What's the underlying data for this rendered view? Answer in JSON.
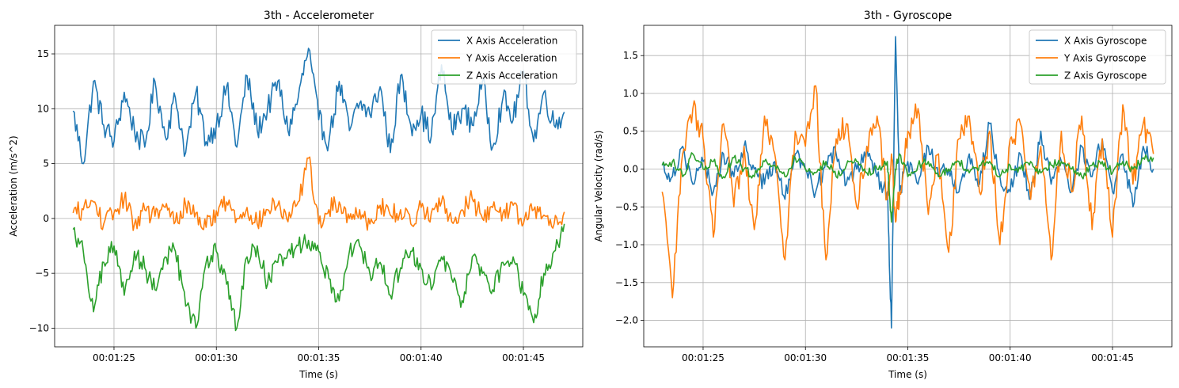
{
  "chart_data": [
    {
      "type": "line",
      "title": "3th - Accelerometer",
      "xlabel": "Time (s)",
      "ylabel": "Acceleration (m/s^2)",
      "x_tick_labels": [
        "00:01:25",
        "00:01:30",
        "00:01:35",
        "00:01:40",
        "00:01:45"
      ],
      "y_ticks": [
        -10,
        -5,
        0,
        5,
        10,
        15
      ],
      "xlim": [
        "00:01:22.1",
        "00:01:47.9"
      ],
      "ylim": [
        -11.7,
        17.6
      ],
      "grid": true,
      "legend_position": "top-right",
      "series": [
        {
          "name": "X Axis Acceleration",
          "color": "#1f77b4"
        },
        {
          "name": "Y Axis Acceleration",
          "color": "#ff7f0e"
        },
        {
          "name": "Z Axis Acceleration",
          "color": "#2ca02c"
        }
      ],
      "x": [
        "00:01:23.0",
        "00:01:23.5",
        "00:01:24.0",
        "00:01:24.5",
        "00:01:25.0",
        "00:01:25.5",
        "00:01:26.0",
        "00:01:26.5",
        "00:01:27.0",
        "00:01:27.5",
        "00:01:28.0",
        "00:01:28.5",
        "00:01:29.0",
        "00:01:29.5",
        "00:01:30.0",
        "00:01:30.5",
        "00:01:31.0",
        "00:01:31.5",
        "00:01:32.0",
        "00:01:32.5",
        "00:01:33.0",
        "00:01:33.5",
        "00:01:34.0",
        "00:01:34.5",
        "00:01:35.0",
        "00:01:35.5",
        "00:01:36.0",
        "00:01:36.5",
        "00:01:37.0",
        "00:01:37.5",
        "00:01:38.0",
        "00:01:38.5",
        "00:01:39.0",
        "00:01:39.5",
        "00:01:40.0",
        "00:01:40.5",
        "00:01:41.0",
        "00:01:41.5",
        "00:01:42.0",
        "00:01:42.5",
        "00:01:43.0",
        "00:01:43.5",
        "00:01:44.0",
        "00:01:44.5",
        "00:01:45.0",
        "00:01:45.5",
        "00:01:46.0",
        "00:01:46.5",
        "00:01:47.0"
      ],
      "values": [
        [
          9.8,
          5.0,
          12.5,
          8.5,
          7.0,
          11.5,
          8.0,
          6.5,
          12.5,
          7.5,
          11.0,
          6.0,
          11.5,
          7.0,
          8.5,
          12.0,
          6.5,
          13.0,
          8.0,
          10.0,
          12.5,
          8.0,
          11.0,
          15.5,
          9.0,
          7.0,
          12.5,
          8.0,
          10.5,
          9.5,
          12.0,
          6.0,
          13.0,
          8.5,
          9.5,
          7.5,
          14.0,
          8.0,
          10.0,
          8.5,
          12.5,
          6.5,
          11.0,
          9.0,
          13.5,
          7.0,
          11.5,
          8.5,
          9.7
        ],
        [
          0.5,
          0.8,
          1.5,
          -0.5,
          0.5,
          1.8,
          -0.5,
          0.8,
          0.2,
          1.0,
          -0.3,
          1.2,
          0.5,
          -0.8,
          0.7,
          1.5,
          0.0,
          1.0,
          -0.5,
          0.8,
          1.2,
          -0.3,
          1.5,
          5.5,
          -0.5,
          0.8,
          1.5,
          0.0,
          0.8,
          -0.5,
          1.2,
          0.3,
          0.8,
          -0.5,
          1.0,
          0.5,
          1.5,
          -0.3,
          0.8,
          1.8,
          0.0,
          1.0,
          0.5,
          1.2,
          -0.5,
          0.8,
          0.3,
          -0.5,
          0.6
        ],
        [
          -1.0,
          -3.0,
          -8.5,
          -4.0,
          -2.5,
          -7.0,
          -3.0,
          -4.5,
          -6.5,
          -3.5,
          -3.0,
          -8.0,
          -10.0,
          -4.0,
          -3.0,
          -6.0,
          -10.0,
          -3.5,
          -2.5,
          -6.0,
          -4.0,
          -3.0,
          -2.5,
          -2.0,
          -3.0,
          -5.5,
          -7.5,
          -3.0,
          -2.5,
          -5.0,
          -4.0,
          -7.0,
          -4.5,
          -3.0,
          -4.5,
          -6.5,
          -3.5,
          -5.5,
          -7.5,
          -3.5,
          -5.0,
          -6.5,
          -4.0,
          -3.5,
          -7.0,
          -9.5,
          -5.0,
          -3.0,
          -0.5
        ]
      ]
    },
    {
      "type": "line",
      "title": "3th - Gyroscope",
      "xlabel": "Time (s)",
      "ylabel": "Angular Velocity (rad/s)",
      "x_tick_labels": [
        "00:01:25",
        "00:01:30",
        "00:01:35",
        "00:01:40",
        "00:01:45"
      ],
      "y_ticks": [
        -2.0,
        -1.5,
        -1.0,
        -0.5,
        0.0,
        0.5,
        1.0,
        1.5
      ],
      "xlim": [
        "00:01:22.1",
        "00:01:47.9"
      ],
      "ylim": [
        -2.35,
        1.9
      ],
      "grid": true,
      "legend_position": "top-right",
      "series": [
        {
          "name": "X Axis Gyroscope",
          "color": "#1f77b4"
        },
        {
          "name": "Y Axis Gyroscope",
          "color": "#ff7f0e"
        },
        {
          "name": "Z Axis Gyroscope",
          "color": "#2ca02c"
        }
      ],
      "x": [
        "00:01:23.0",
        "00:01:23.5",
        "00:01:24.0",
        "00:01:24.5",
        "00:01:25.0",
        "00:01:25.5",
        "00:01:26.0",
        "00:01:26.5",
        "00:01:27.0",
        "00:01:27.5",
        "00:01:28.0",
        "00:01:28.5",
        "00:01:29.0",
        "00:01:29.5",
        "00:01:30.0",
        "00:01:30.5",
        "00:01:31.0",
        "00:01:31.5",
        "00:01:32.0",
        "00:01:32.5",
        "00:01:33.0",
        "00:01:33.5",
        "00:01:34.0",
        "00:01:34.2",
        "00:01:34.4",
        "00:01:34.6",
        "00:01:35.0",
        "00:01:35.5",
        "00:01:36.0",
        "00:01:36.5",
        "00:01:37.0",
        "00:01:37.5",
        "00:01:38.0",
        "00:01:38.5",
        "00:01:39.0",
        "00:01:39.5",
        "00:01:40.0",
        "00:01:40.5",
        "00:01:41.0",
        "00:01:41.5",
        "00:01:42.0",
        "00:01:42.5",
        "00:01:43.0",
        "00:01:43.5",
        "00:01:44.0",
        "00:01:44.5",
        "00:01:45.0",
        "00:01:45.5",
        "00:01:46.0",
        "00:01:46.5",
        "00:01:47.0"
      ],
      "values": [
        [
          0.05,
          -0.1,
          0.3,
          -0.2,
          0.1,
          -0.3,
          0.2,
          -0.1,
          0.3,
          0.0,
          -0.2,
          0.1,
          -0.4,
          0.2,
          0.0,
          -0.3,
          0.1,
          0.2,
          -0.2,
          0.0,
          0.3,
          -0.1,
          -0.3,
          -2.1,
          1.75,
          -0.3,
          0.1,
          -0.2,
          0.3,
          -0.1,
          0.0,
          -0.3,
          0.2,
          -0.2,
          0.6,
          -0.1,
          -0.3,
          0.2,
          -0.4,
          0.5,
          -0.2,
          0.1,
          -0.3,
          0.3,
          -0.1,
          0.4,
          -0.3,
          0.2,
          -0.5,
          0.3,
          0.0
        ],
        [
          -0.3,
          -1.7,
          0.2,
          0.8,
          0.4,
          -0.9,
          0.6,
          -0.5,
          0.3,
          -0.8,
          0.7,
          0.2,
          -1.2,
          0.5,
          0.3,
          1.1,
          -1.2,
          0.4,
          0.6,
          -0.5,
          0.3,
          0.7,
          -0.4,
          0.2,
          -0.7,
          -0.3,
          0.5,
          0.8,
          -0.6,
          0.2,
          -1.1,
          0.4,
          0.7,
          -0.3,
          0.5,
          -1.0,
          0.4,
          0.6,
          -0.4,
          0.3,
          -1.2,
          0.5,
          -0.3,
          0.7,
          -0.8,
          0.4,
          -0.9,
          0.85,
          -0.2,
          0.6,
          0.2
        ],
        [
          0.05,
          0.1,
          -0.1,
          0.2,
          0.0,
          0.1,
          -0.1,
          0.15,
          0.0,
          -0.1,
          0.1,
          0.05,
          -0.1,
          0.15,
          0.0,
          -0.05,
          0.1,
          -0.1,
          0.05,
          0.1,
          -0.05,
          0.0,
          0.1,
          -0.7,
          0.0,
          0.2,
          -0.1,
          0.05,
          0.1,
          -0.1,
          0.0,
          0.1,
          -0.05,
          0.05,
          0.1,
          -0.1,
          0.05,
          0.0,
          0.1,
          -0.05,
          0.05,
          0.1,
          0.0,
          -0.1,
          0.05,
          0.1,
          -0.05,
          0.1,
          0.0,
          0.15,
          0.15
        ]
      ]
    }
  ]
}
